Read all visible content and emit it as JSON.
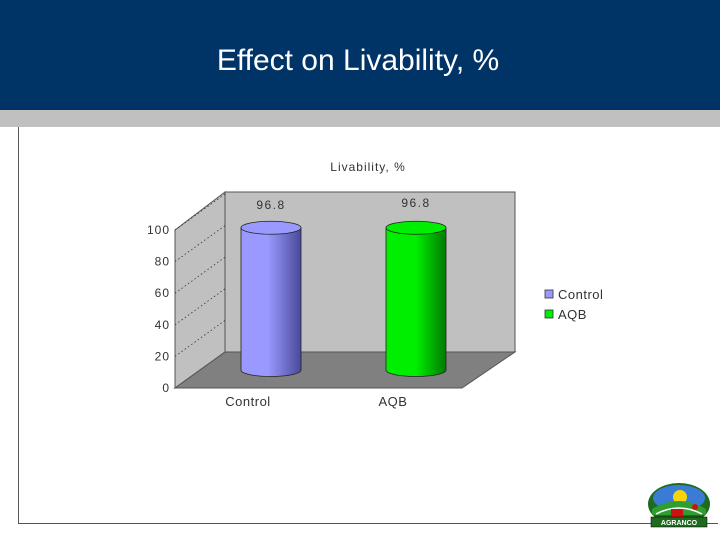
{
  "slide": {
    "title": "Effect on Livability, %"
  },
  "colors": {
    "header_bg": "#003366",
    "stripe": "#c0c0c0",
    "plot_back": "#c0c0c0",
    "plot_floor": "#808080",
    "control": "#9999ff",
    "aqb": "#00ee00"
  },
  "chart_data": {
    "type": "bar",
    "title": "Livability, %",
    "categories": [
      "Control",
      "AQB"
    ],
    "series": [
      {
        "name": "Control",
        "values": [
          96.8,
          null
        ],
        "color": "#9999ff"
      },
      {
        "name": "AQB",
        "values": [
          null,
          96.8
        ],
        "color": "#00ee00"
      }
    ],
    "data_labels": [
      "96.8",
      "96.8"
    ],
    "ylim": [
      0,
      100
    ],
    "yticks": [
      0,
      20,
      40,
      60,
      80,
      100
    ],
    "ytick_labels": [
      "0",
      "20",
      "40",
      "60",
      "80",
      "100"
    ],
    "xlabel": "",
    "ylabel": "",
    "style": "3d-cylinder",
    "legend": "right",
    "grid": true
  },
  "logo": {
    "text": "AGRANCO",
    "icon": "agranco-logo-icon"
  }
}
